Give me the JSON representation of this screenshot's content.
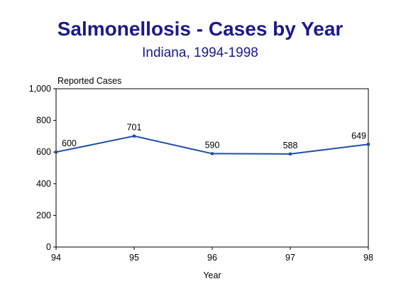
{
  "chart_data": {
    "type": "line",
    "title": "Salmonellosis - Cases by Year",
    "subtitle": "Indiana, 1994-1998",
    "xlabel": "Year",
    "ylabel": "Reported Cases",
    "categories": [
      "94",
      "95",
      "96",
      "97",
      "98"
    ],
    "values": [
      600,
      701,
      590,
      588,
      649
    ],
    "data_labels": [
      "600",
      "701",
      "590",
      "588",
      "649"
    ],
    "ylim": [
      0,
      1000
    ],
    "yticks": [
      0,
      200,
      400,
      600,
      800,
      1000
    ],
    "ytick_labels": [
      "0",
      "200",
      "400",
      "600",
      "800",
      "1,000"
    ],
    "grid": false,
    "line_color": "#1f4fa8",
    "title_color": "#1a1a8c"
  }
}
